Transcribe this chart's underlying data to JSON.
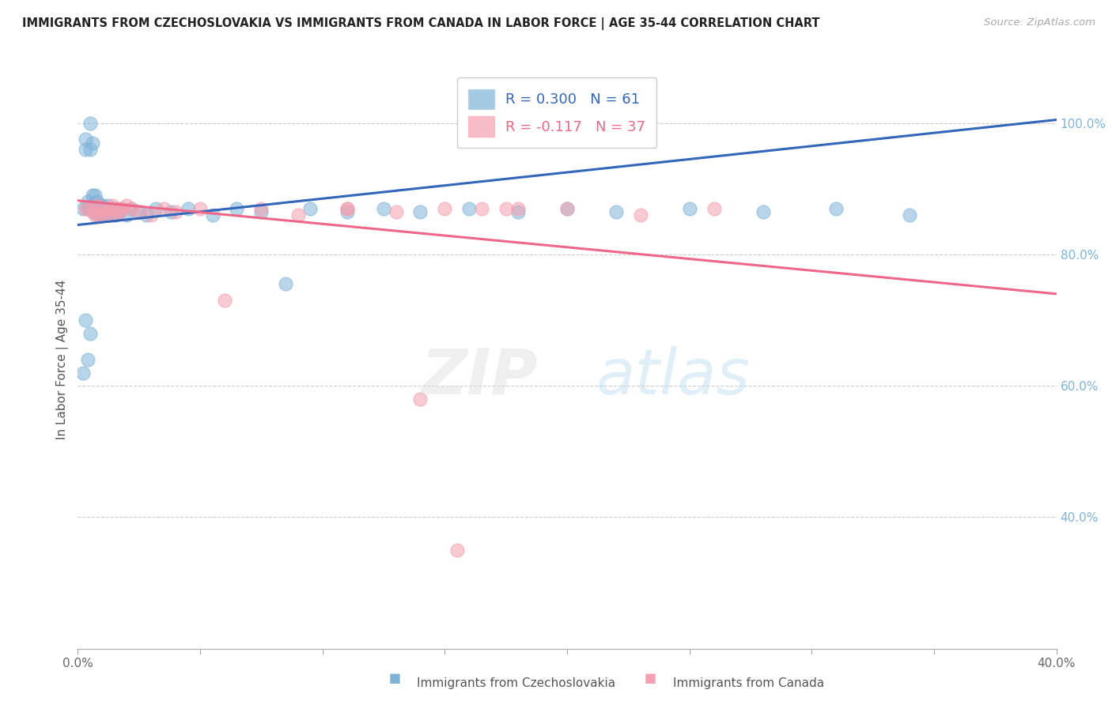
{
  "title": "IMMIGRANTS FROM CZECHOSLOVAKIA VS IMMIGRANTS FROM CANADA IN LABOR FORCE | AGE 35-44 CORRELATION CHART",
  "source": "Source: ZipAtlas.com",
  "ylabel": "In Labor Force | Age 35-44",
  "xlim": [
    0.0,
    0.4
  ],
  "ylim": [
    0.2,
    1.08
  ],
  "x_tick_positions": [
    0.0,
    0.05,
    0.1,
    0.15,
    0.2,
    0.25,
    0.3,
    0.35,
    0.4
  ],
  "x_tick_labels": [
    "0.0%",
    "",
    "",
    "",
    "",
    "",
    "",
    "",
    "40.0%"
  ],
  "y_ticks_right": [
    0.4,
    0.6,
    0.8,
    1.0
  ],
  "y_tick_labels_right": [
    "40.0%",
    "60.0%",
    "80.0%",
    "100.0%"
  ],
  "R_blue": 0.3,
  "N_blue": 61,
  "R_pink": -0.117,
  "N_pink": 37,
  "blue_color": "#7EB3D8",
  "pink_color": "#F4A0B0",
  "blue_line_color": "#3366BB",
  "pink_line_color": "#EE6688",
  "legend_label_blue": "Immigrants from Czechoslovakia",
  "legend_label_pink": "Immigrants from Canada",
  "blue_line_x": [
    0.0,
    0.4
  ],
  "blue_line_y": [
    0.845,
    1.005
  ],
  "pink_line_x": [
    0.0,
    0.4
  ],
  "pink_line_y": [
    0.882,
    0.74
  ],
  "blue_scatter_x": [
    0.002,
    0.003,
    0.003,
    0.004,
    0.004,
    0.005,
    0.005,
    0.005,
    0.006,
    0.006,
    0.006,
    0.007,
    0.007,
    0.007,
    0.008,
    0.008,
    0.008,
    0.008,
    0.009,
    0.009,
    0.009,
    0.01,
    0.01,
    0.01,
    0.011,
    0.011,
    0.012,
    0.012,
    0.013,
    0.014,
    0.015,
    0.016,
    0.017,
    0.018,
    0.02,
    0.022,
    0.025,
    0.028,
    0.032,
    0.038,
    0.045,
    0.055,
    0.065,
    0.075,
    0.085,
    0.095,
    0.11,
    0.125,
    0.14,
    0.16,
    0.18,
    0.2,
    0.22,
    0.25,
    0.28,
    0.31,
    0.34,
    0.002,
    0.003,
    0.004,
    0.005
  ],
  "blue_scatter_y": [
    0.87,
    0.975,
    0.96,
    0.88,
    0.87,
    1.0,
    0.96,
    0.87,
    0.97,
    0.89,
    0.87,
    0.89,
    0.87,
    0.865,
    0.88,
    0.87,
    0.865,
    0.86,
    0.87,
    0.875,
    0.865,
    0.87,
    0.86,
    0.875,
    0.865,
    0.87,
    0.86,
    0.875,
    0.865,
    0.87,
    0.86,
    0.87,
    0.865,
    0.87,
    0.86,
    0.87,
    0.865,
    0.86,
    0.87,
    0.865,
    0.87,
    0.86,
    0.87,
    0.865,
    0.755,
    0.87,
    0.865,
    0.87,
    0.865,
    0.87,
    0.865,
    0.87,
    0.865,
    0.87,
    0.865,
    0.87,
    0.86,
    0.62,
    0.7,
    0.64,
    0.68
  ],
  "pink_scatter_x": [
    0.003,
    0.005,
    0.006,
    0.007,
    0.008,
    0.009,
    0.01,
    0.011,
    0.012,
    0.013,
    0.014,
    0.015,
    0.016,
    0.017,
    0.018,
    0.02,
    0.022,
    0.025,
    0.03,
    0.035,
    0.04,
    0.05,
    0.06,
    0.075,
    0.09,
    0.11,
    0.13,
    0.15,
    0.175,
    0.2,
    0.23,
    0.26,
    0.14,
    0.155,
    0.165,
    0.18,
    0.11
  ],
  "pink_scatter_y": [
    0.87,
    0.87,
    0.865,
    0.86,
    0.875,
    0.86,
    0.87,
    0.865,
    0.86,
    0.87,
    0.875,
    0.86,
    0.87,
    0.865,
    0.87,
    0.875,
    0.87,
    0.865,
    0.86,
    0.87,
    0.865,
    0.87,
    0.73,
    0.87,
    0.86,
    0.87,
    0.865,
    0.87,
    0.87,
    0.87,
    0.86,
    0.87,
    0.58,
    0.35,
    0.87,
    0.87,
    0.87
  ]
}
